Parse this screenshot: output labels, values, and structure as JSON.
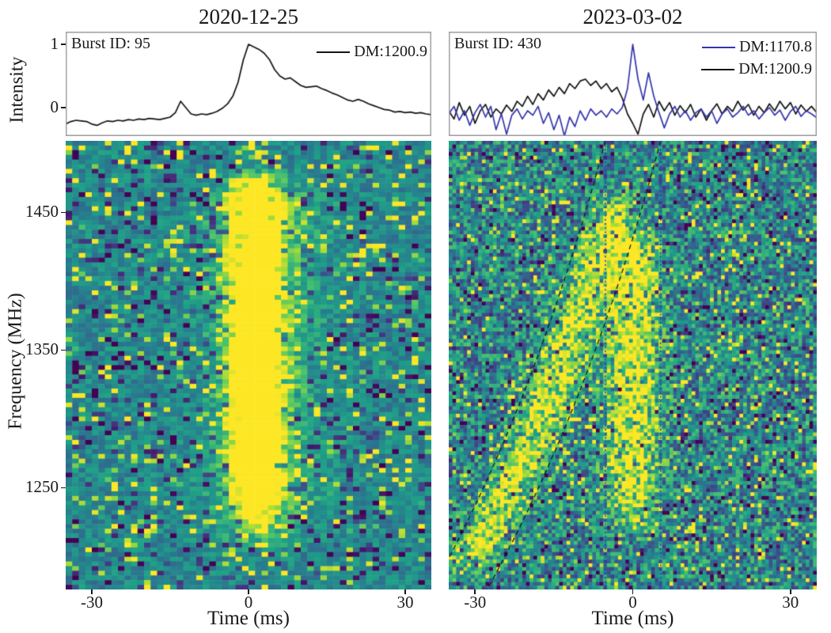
{
  "figure_type": "frb-burst-dynamic-spectra",
  "chart_data": [
    {
      "type": "line+heatmap",
      "title": "2020-12-25",
      "burst_id": "Burst ID: 95",
      "xlabel": "Time (ms)",
      "xlim": [
        -35,
        35
      ],
      "x_ticks": [
        "-30",
        "0",
        "30"
      ],
      "x_tick_values": [
        -30,
        0,
        30
      ],
      "legend": [
        {
          "label": "DM:1200.9",
          "color": "#141414"
        }
      ],
      "intensity_panel": {
        "ylabel": "Intensity",
        "ylim": [
          -0.45,
          1.2
        ],
        "y_ticks": [
          "1",
          "0"
        ],
        "y_tick_values": [
          1,
          0
        ],
        "series": [
          {
            "name": "DM:1200.9",
            "color": "#141414",
            "x_start": -35,
            "x_step": 1,
            "values": [
              -0.26,
              -0.22,
              -0.2,
              -0.21,
              -0.22,
              -0.26,
              -0.28,
              -0.24,
              -0.21,
              -0.22,
              -0.2,
              -0.21,
              -0.19,
              -0.2,
              -0.18,
              -0.19,
              -0.17,
              -0.18,
              -0.19,
              -0.17,
              -0.15,
              -0.08,
              0.1,
              0.0,
              -0.1,
              -0.12,
              -0.1,
              -0.11,
              -0.09,
              -0.06,
              -0.01,
              0.06,
              0.18,
              0.4,
              0.75,
              1.0,
              0.96,
              0.92,
              0.86,
              0.76,
              0.6,
              0.5,
              0.45,
              0.47,
              0.41,
              0.35,
              0.32,
              0.33,
              0.34,
              0.3,
              0.27,
              0.23,
              0.2,
              0.16,
              0.12,
              0.1,
              0.13,
              0.1,
              0.06,
              0.03,
              0.0,
              -0.03,
              -0.04,
              -0.07,
              -0.06,
              -0.08,
              -0.07,
              -0.09,
              -0.08,
              -0.1,
              -0.11
            ]
          }
        ]
      },
      "spectrogram_panel": {
        "ylabel": "Frequency (MHz)",
        "freq_lim": [
          1176,
          1502
        ],
        "freq_ticks": [
          "1450",
          "1350",
          "1250"
        ],
        "freq_tick_values": [
          1450,
          1350,
          1250
        ],
        "colormap": "viridis",
        "noise": {
          "seed": 17,
          "cols": 56,
          "rows": 96,
          "base": 0.46,
          "spread": 0.26,
          "bright_frac": 0.1,
          "dark_frac": 0.11
        },
        "bursts": [
          {
            "t_center": 1.5,
            "t_sigma": 3.0,
            "amp": 1.5,
            "jitter": 0.35,
            "f_zero": [
              1205,
              1485
            ],
            "f_full": [
              1268,
              1458
            ]
          },
          {
            "t_center": 3.0,
            "t_sigma": 7.5,
            "amp": 0.22,
            "jitter": 0.6,
            "f_zero": [
              1200,
              1480
            ],
            "f_full": [
              1240,
              1460
            ]
          }
        ],
        "overlays": {
          "curves": [],
          "vlines": []
        }
      }
    },
    {
      "type": "line+heatmap",
      "title": "2023-03-02",
      "burst_id": "Burst ID: 430",
      "xlabel": "Time (ms)",
      "xlim": [
        -35,
        35
      ],
      "x_ticks": [
        "-30",
        "0",
        "30"
      ],
      "x_tick_values": [
        -30,
        0,
        30
      ],
      "legend": [
        {
          "label": "DM:1170.8",
          "color": "#3535ae"
        },
        {
          "label": "DM:1200.9",
          "color": "#141414"
        }
      ],
      "intensity_panel": {
        "ylabel": "",
        "ylim": [
          -0.45,
          1.2
        ],
        "y_ticks": [],
        "y_tick_values": [],
        "series": [
          {
            "name": "DM:1170.8",
            "color": "#3535ae",
            "x_start": -35,
            "x_step": 1,
            "values": [
              -0.1,
              0.02,
              -0.2,
              -0.05,
              -0.28,
              -0.08,
              0.05,
              -0.15,
              0.02,
              -0.35,
              -0.1,
              -0.42,
              -0.12,
              -0.02,
              -0.18,
              -0.05,
              -0.12,
              0.02,
              -0.25,
              -0.08,
              -0.35,
              -0.12,
              -0.45,
              -0.15,
              -0.3,
              -0.05,
              -0.2,
              -0.02,
              -0.12,
              -0.05,
              -0.15,
              -0.02,
              -0.1,
              0.0,
              0.3,
              1.0,
              0.45,
              0.12,
              0.55,
              0.18,
              -0.08,
              -0.32,
              -0.1,
              0.02,
              -0.15,
              -0.05,
              -0.2,
              -0.08,
              -0.02,
              -0.15,
              -0.05,
              -0.25,
              -0.1,
              -0.02,
              -0.15,
              -0.08,
              0.02,
              -0.12,
              -0.05,
              -0.18,
              -0.08,
              0.0,
              -0.12,
              -0.04,
              -0.2,
              -0.06,
              0.02,
              -0.14,
              -0.05,
              -0.1,
              -0.16
            ]
          },
          {
            "name": "DM:1200.9",
            "color": "#141414",
            "x_start": -35,
            "x_step": 1,
            "values": [
              -0.05,
              -0.18,
              0.08,
              -0.12,
              0.02,
              -0.25,
              -0.05,
              0.05,
              -0.15,
              -0.02,
              -0.1,
              0.04,
              -0.06,
              0.1,
              0.02,
              0.18,
              0.05,
              0.22,
              0.12,
              0.28,
              0.18,
              0.32,
              0.22,
              0.38,
              0.3,
              0.42,
              0.45,
              0.35,
              0.42,
              0.3,
              0.38,
              0.25,
              0.32,
              0.15,
              -0.1,
              -0.25,
              -0.42,
              -0.1,
              0.05,
              -0.15,
              0.1,
              -0.05,
              0.08,
              -0.12,
              0.03,
              -0.08,
              0.05,
              -0.15,
              -0.02,
              -0.2,
              -0.05,
              0.06,
              -0.1,
              0.02,
              -0.06,
              0.1,
              -0.04,
              0.05,
              -0.12,
              0.02,
              -0.08,
              0.06,
              -0.05,
              0.1,
              -0.02,
              0.08,
              -0.1,
              0.04,
              -0.06,
              0.02,
              -0.08
            ]
          }
        ]
      },
      "spectrogram_panel": {
        "ylabel": "",
        "freq_lim": [
          1176,
          1502
        ],
        "freq_ticks": [],
        "freq_tick_values": [],
        "colormap": "viridis",
        "noise": {
          "seed": 83,
          "cols": 100,
          "rows": 120,
          "base": 0.45,
          "spread": 0.55,
          "bright_frac": 0.09,
          "dark_frac": 0.09
        },
        "bursts": [
          {
            "t_center": 0.0,
            "t_sigma": 3.4,
            "amp": 0.55,
            "jitter": 0.7,
            "f_zero": [
              1210,
              1445
            ],
            "f_full": [
              1250,
              1425
            ]
          },
          {
            "t_center": 0.2,
            "t_sigma": 3.2,
            "amp": 0.5,
            "jitter": 0.7,
            "disp_sweep": 33,
            "f_zero": [
              1180,
              1470
            ],
            "f_full": [
              1210,
              1440
            ]
          }
        ],
        "overlays": {
          "curves": [
            {
              "t_top": -5.2,
              "sweep": 33,
              "color": "#0d0d0d",
              "dash": [
                6,
                4.5
              ],
              "width": 1.2
            },
            {
              "t_top": 5.3,
              "sweep": 33,
              "color": "#0d0d0d",
              "dash": [
                6,
                4.5
              ],
              "width": 1.2
            }
          ],
          "vlines": [
            {
              "t": -5.2,
              "color": "#2438c8",
              "dash": [
                2,
                3.2
              ],
              "width": 1.6
            },
            {
              "t": 5.3,
              "color": "#2438c8",
              "dash": [
                2,
                3.2
              ],
              "width": 1.6
            }
          ]
        }
      }
    }
  ],
  "colormap_stops": [
    [
      0.0,
      68,
      1,
      84
    ],
    [
      0.14,
      70,
      50,
      127
    ],
    [
      0.28,
      54,
      92,
      141
    ],
    [
      0.42,
      39,
      127,
      142
    ],
    [
      0.57,
      31,
      161,
      135
    ],
    [
      0.71,
      74,
      194,
      109
    ],
    [
      0.85,
      159,
      218,
      58
    ],
    [
      1.0,
      253,
      231,
      37
    ]
  ]
}
